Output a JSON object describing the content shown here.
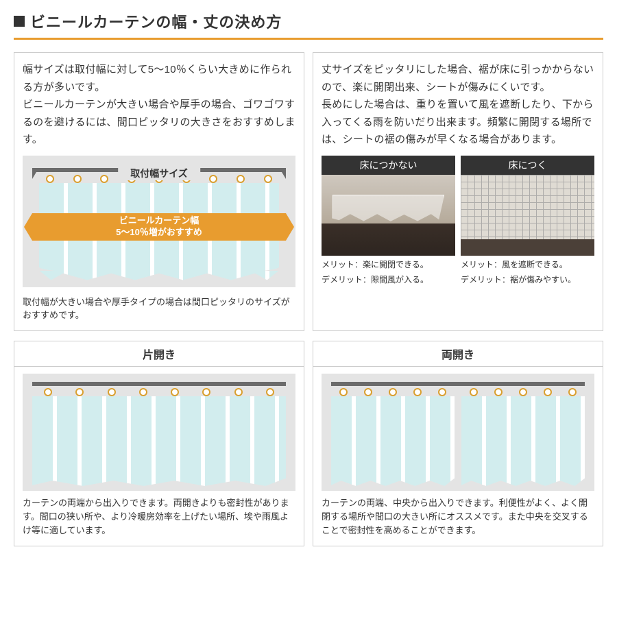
{
  "header": {
    "title": "ビニールカーテンの幅・丈の決め方"
  },
  "width_box": {
    "text": "幅サイズは取付幅に対して5〜10％くらい大きめに作られる方が多いです。\nビニールカーテンが大きい場合や厚手の場合、ゴワゴワするのを避けるには、間口ピッタリの大きさをおすすめします。",
    "track_label": "取付幅サイズ",
    "orange_line1": "ビニールカーテン幅",
    "orange_line2": "5〜10％増がおすすめ",
    "caption": "取付幅が大きい場合や厚手タイプの場合は間口ピッタリのサイズがおすすめです。"
  },
  "length_box": {
    "text": "丈サイズをピッタリにした場合、裾が床に引っかからないので、楽に開閉出来、シートが傷みにくいです。\n長めにした場合は、重りを置いて風を遮断したり、下から入ってくる雨を防いだり出来ます。頻繁に開閉する場所では、シートの裾の傷みが早くなる場合があります。",
    "photos": [
      {
        "label": "床につかない",
        "merit": "メリット：楽に開閉できる。",
        "demerit": "デメリット：隙間風が入る。"
      },
      {
        "label": "床につく",
        "merit": "メリット：風を遮断できる。",
        "demerit": "デメリット：裾が傷みやすい。"
      }
    ]
  },
  "opening": [
    {
      "title": "片開き",
      "panels": 1,
      "caption": "カーテンの両端から出入りできます。両開きよりも密封性があります。間口の狭い所や、より冷暖房効率を上げたい場所、埃や雨風よけ等に適しています。"
    },
    {
      "title": "両開き",
      "panels": 2,
      "caption": "カーテンの両端、中央から出入りできます。利便性がよく、よく開閉する場所や間口の大きい所にオススメです。また中央を交叉することで密封性を高めることができます。"
    }
  ],
  "ring_count": 9
}
